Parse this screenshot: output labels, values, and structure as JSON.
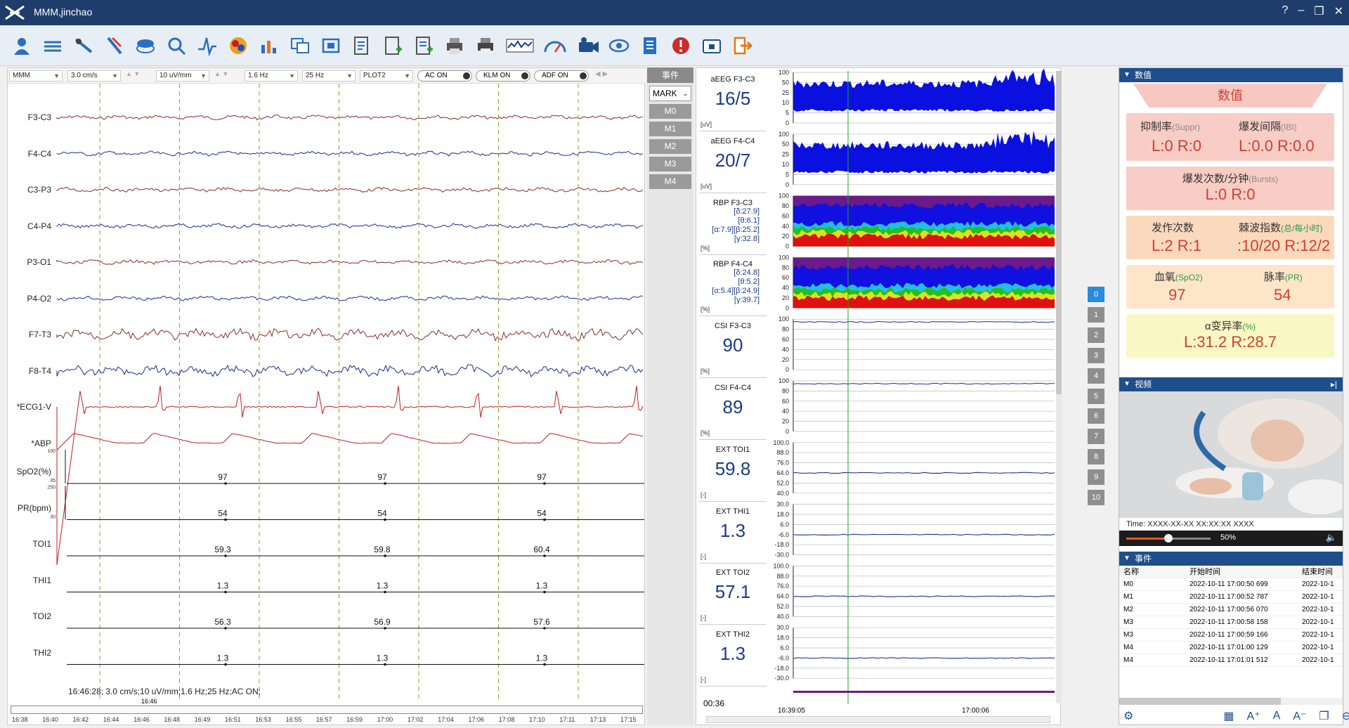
{
  "app": {
    "title": "MMM,jinchao"
  },
  "left": {
    "montage": "MMM",
    "speed": "3.0 cm/s",
    "sensitivity": "10 uV/mm",
    "lowcut": "1.6 Hz",
    "highcut": "25 Hz",
    "plot": "PLOT2",
    "ac": "AC ON",
    "klm": "KLM ON",
    "adf": "ADF ON",
    "channels": [
      "F3-C3",
      "F4-C4",
      "C3-P3",
      "C4-P4",
      "P3-O1",
      "P4-O2",
      "F7-T3",
      "F8-T4",
      "*ECG1-V",
      "*ABP"
    ],
    "num_rows": [
      {
        "label": "SpO2(%)",
        "vals": [
          "97",
          "97",
          "97"
        ],
        "top": "100",
        "bottom": "35"
      },
      {
        "label": "PR(bpm)",
        "vals": [
          "54",
          "54",
          "54"
        ],
        "top": "250",
        "bottom": "30"
      },
      {
        "label": "TOI1",
        "vals": [
          "59.3",
          "59.8",
          "60.4"
        ]
      },
      {
        "label": "THI1",
        "vals": [
          "1.3",
          "1.3",
          "1.3"
        ]
      },
      {
        "label": "TOI2",
        "vals": [
          "56.3",
          "56.9",
          "57.6"
        ]
      },
      {
        "label": "THI2",
        "vals": [
          "1.3",
          "1.3",
          "1.3"
        ]
      }
    ],
    "status": "16:46:28; 3.0 cm/s;10 uV/mm;1.6 Hz;25 Hz;AC ON;",
    "scroll_marker": "16:46",
    "timeline": [
      "16:38",
      "16:40",
      "16:42",
      "16:44",
      "16:46",
      "16:48",
      "16:49",
      "16:51",
      "16:53",
      "16:55",
      "16:57",
      "16:59",
      "17:00",
      "17:02",
      "17:04",
      "17:06",
      "17:08",
      "17:10",
      "17:11",
      "17:13",
      "17:15"
    ]
  },
  "events_col": {
    "header": "事件",
    "mark": "MARK",
    "buttons": [
      "M0",
      "M1",
      "M2",
      "M3",
      "M4"
    ]
  },
  "trend": {
    "items": [
      {
        "name": "aEEG F3-C3",
        "value": "16/5",
        "unit": "[uV]",
        "scale": [
          "100",
          "50",
          "25",
          "10",
          "5",
          "0"
        ]
      },
      {
        "name": "aEEG F4-C4",
        "value": "20/7",
        "unit": "[uV]",
        "scale": [
          "100",
          "50",
          "25",
          "10",
          "5",
          "0"
        ]
      },
      {
        "name": "RBP F3-C3",
        "rbp": [
          "[δ:27.9]",
          "[θ:6.1]",
          "[α:7.9][β:25.2]",
          "[γ:32.8]"
        ],
        "unit": "[%]",
        "scale": [
          "100",
          "80",
          "60",
          "40",
          "20",
          "0"
        ]
      },
      {
        "name": "RBP F4-C4",
        "rbp": [
          "[δ:24.8]",
          "[θ:5.2]",
          "[α:5.4][β:24.9]",
          "[γ:39.7]"
        ],
        "unit": "[%]",
        "scale": [
          "100",
          "80",
          "60",
          "40",
          "20",
          "0"
        ]
      },
      {
        "name": "CSI F3-C3",
        "value": "90",
        "unit": "[%]",
        "scale": [
          "100",
          "80",
          "60",
          "40",
          "20",
          "0"
        ]
      },
      {
        "name": "CSI F4-C4",
        "value": "89",
        "unit": "[%]",
        "scale": [
          "100",
          "80",
          "60",
          "40",
          "20",
          "0"
        ]
      },
      {
        "name": "EXT TOI1",
        "value": "59.8",
        "unit": "[-]",
        "scale": [
          "100.0",
          "88.0",
          "76.0",
          "64.0",
          "52.0",
          "40.0"
        ]
      },
      {
        "name": "EXT THI1",
        "value": "1.3",
        "unit": "[-]",
        "scale": [
          "30.0",
          "18.0",
          "6.0",
          "-6.0",
          "-18.0",
          "-30.0"
        ]
      },
      {
        "name": "EXT TOI2",
        "value": "57.1",
        "unit": "[-]",
        "scale": [
          "100.0",
          "88.0",
          "76.0",
          "64.0",
          "52.0",
          "40.0"
        ]
      },
      {
        "name": "EXT THI2",
        "value": "1.3",
        "unit": "[-]",
        "scale": [
          "30.0",
          "18.0",
          "6.0",
          "-6.0",
          "-18.0",
          "-30.0"
        ]
      }
    ],
    "elapsed": "00:36",
    "start_time": "16:39:05",
    "end_time": "17:00:06",
    "pages": [
      "0",
      "1",
      "2",
      "3",
      "4",
      "5",
      "6",
      "7",
      "8",
      "9",
      "10"
    ]
  },
  "right": {
    "values_title": "数值",
    "values_banner": "数值",
    "supp_label": "抑制率",
    "supp_en": "(Suppr)",
    "supp_val": "L:0 R:0",
    "ibi_label": "爆发间隔",
    "ibi_en": "(IBI)",
    "ibi_val": "L:0.0 R:0.0",
    "bursts_label": "爆发次数/分钟",
    "bursts_en": "(Bursts)",
    "bursts_val": "L:0 R:0",
    "seiz_label": "发作次数",
    "seiz_val": "L:2 R:1",
    "spike_label": "棘波指数",
    "spike_en": "(总/每小时)",
    "spike_val": ":10/20 R:12/2",
    "spo2_label": "血氧",
    "spo2_en": "(SpO2)",
    "spo2_val": "97",
    "pr_label": "脉率",
    "pr_en": "(PR)",
    "pr_val": "54",
    "alpha_label": "α变异率",
    "alpha_en": "(%)",
    "alpha_val": "L:31.2 R:28.7",
    "video_title": "视频",
    "video_time": "Time:     XXXX-XX-XX XX:XX:XX XXXX",
    "volume": "50%",
    "volume_level": 0.5,
    "events_title": "事件",
    "event_cols": [
      "名称",
      "开始时间",
      "结束时间"
    ],
    "events": [
      {
        "n": "M0",
        "s": "2022-10-11 17:00:50 699",
        "e": "2022-10-1"
      },
      {
        "n": "M1",
        "s": "2022-10-11 17:00:52 787",
        "e": "2022-10-1"
      },
      {
        "n": "M2",
        "s": "2022-10-11 17:00:56 070",
        "e": "2022-10-1"
      },
      {
        "n": "M3",
        "s": "2022-10-11 17:00:58 158",
        "e": "2022-10-1"
      },
      {
        "n": "M3",
        "s": "2022-10-11 17:00:59 166",
        "e": "2022-10-1"
      },
      {
        "n": "M4",
        "s": "2022-10-11 17:01:00 129",
        "e": "2022-10-1"
      },
      {
        "n": "M4",
        "s": "2022-10-11 17:01:01 512",
        "e": "2022-10-1"
      }
    ]
  }
}
